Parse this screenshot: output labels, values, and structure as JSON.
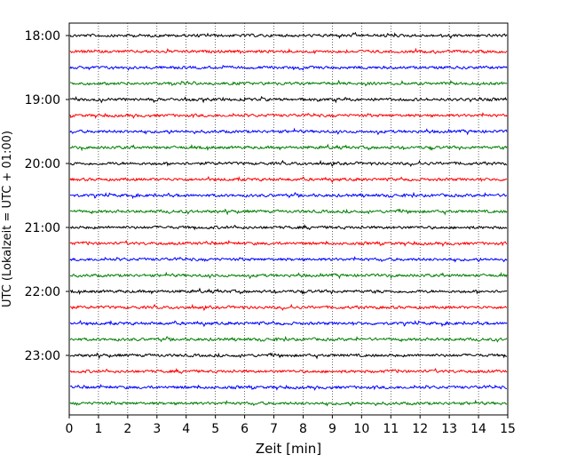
{
  "chart_data": {
    "type": "line",
    "title": "",
    "xlabel": "Zeit  [min]",
    "ylabel": "UTC (Lokalzeit = UTC + 01:00)",
    "xlim": [
      0,
      15
    ],
    "x_ticks": [
      "0",
      "1",
      "2",
      "3",
      "4",
      "5",
      "6",
      "7",
      "8",
      "9",
      "10",
      "11",
      "12",
      "13",
      "14",
      "15"
    ],
    "y_ticks": [
      "18:00",
      "19:00",
      "20:00",
      "21:00",
      "22:00",
      "23:00"
    ],
    "grid": "vertical dotted",
    "trace_interval_minutes": 15,
    "start_time": "18:00",
    "trace_count": 24,
    "series_colors": [
      "#000000",
      "#ff0000",
      "#0000ff",
      "#007f00"
    ]
  }
}
